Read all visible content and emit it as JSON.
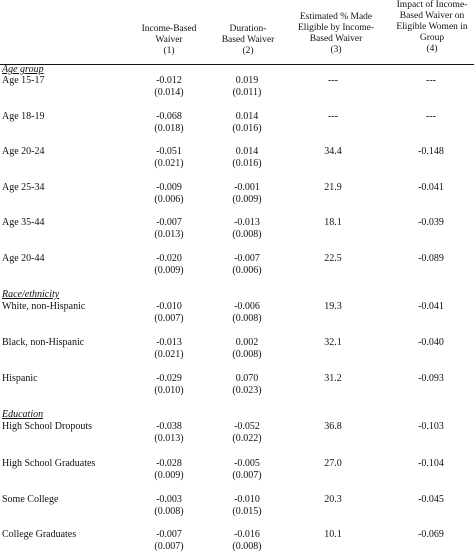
{
  "headers": [
    {
      "lines": [
        "Income-Based",
        "Waiver",
        "(1)"
      ]
    },
    {
      "lines": [
        "Duration-",
        "Based Waiver",
        "(2)"
      ]
    },
    {
      "lines": [
        "Estimated %  Made",
        "Eligible by Income-",
        "Based Waiver",
        "(3)"
      ]
    },
    {
      "lines": [
        "Impact of Income-",
        "Based Waiver on",
        "Eligible Women in",
        "Group",
        "(4)"
      ]
    }
  ],
  "sections": [
    {
      "title": "Age group",
      "rows": [
        {
          "label": "Age 15-17",
          "c1": "-0.012",
          "c1se": "(0.014)",
          "c2": "0.019",
          "c2se": "(0.011)",
          "c3": "---",
          "c4": "---"
        },
        {
          "label": "Age 18-19",
          "c1": "-0.068",
          "c1se": "(0.018)",
          "c2": "0.014",
          "c2se": "(0.016)",
          "c3": "---",
          "c4": "---"
        },
        {
          "label": "Age 20-24",
          "c1": "-0.051",
          "c1se": "(0.021)",
          "c2": "0.014",
          "c2se": "(0.016)",
          "c3": "34.4",
          "c4": "-0.148"
        },
        {
          "label": "Age 25-34",
          "c1": "-0.009",
          "c1se": "(0.006)",
          "c2": "-0.001",
          "c2se": "(0.009)",
          "c3": "21.9",
          "c4": "-0.041"
        },
        {
          "label": "Age 35-44",
          "c1": "-0.007",
          "c1se": "(0.013)",
          "c2": "-0.013",
          "c2se": "(0.008)",
          "c3": "18.1",
          "c4": "-0.039"
        },
        {
          "label": "Age 20-44",
          "c1": "-0.020",
          "c1se": "(0.009)",
          "c2": "-0.007",
          "c2se": "(0.006)",
          "c3": "22.5",
          "c4": "-0.089"
        }
      ]
    },
    {
      "title": "Race/ethnicity",
      "rows": [
        {
          "label": "White, non-Hispanic",
          "c1": "-0.010",
          "c1se": "(0.007)",
          "c2": "-0.006",
          "c2se": "(0.008)",
          "c3": "19.3",
          "c4": "-0.041"
        },
        {
          "label": "Black, non-Hispanic",
          "c1": "-0.013",
          "c1se": "(0.021)",
          "c2": "0.002",
          "c2se": "(0.008)",
          "c3": "32.1",
          "c4": "-0.040"
        },
        {
          "label": "Hispanic",
          "c1": "-0.029",
          "c1se": "(0.010)",
          "c2": "0.070",
          "c2se": "(0.023)",
          "c3": "31.2",
          "c4": "-0.093"
        }
      ]
    },
    {
      "title": "Education",
      "rows": [
        {
          "label": "High School Dropouts",
          "c1": "-0.038",
          "c1se": "(0.013)",
          "c2": "-0.052",
          "c2se": "(0.022)",
          "c3": "36.8",
          "c4": "-0.103"
        },
        {
          "label": "High School Graduates",
          "c1": "-0.028",
          "c1se": "(0.009)",
          "c2": "-0.005",
          "c2se": "(0.007)",
          "c3": "27.0",
          "c4": "-0.104"
        },
        {
          "label": "Some College",
          "c1": "-0.003",
          "c1se": "(0.008)",
          "c2": "-0.010",
          "c2se": "(0.015)",
          "c3": "20.3",
          "c4": "-0.045"
        },
        {
          "label": "College Graduates",
          "c1": "-0.007",
          "c1se": "(0.007)",
          "c2": "-0.016",
          "c2se": "(0.008)",
          "c3": "10.1",
          "c4": "-0.069"
        }
      ]
    }
  ]
}
